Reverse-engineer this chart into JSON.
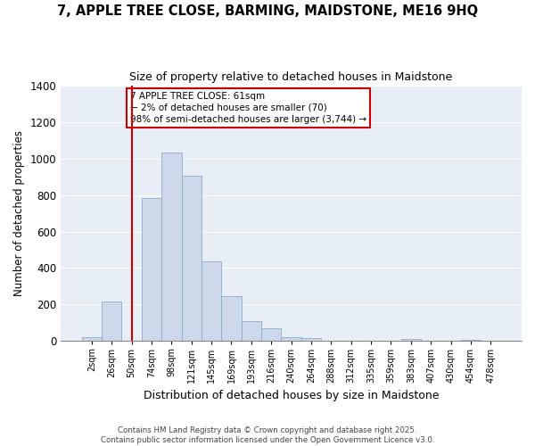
{
  "title": "7, APPLE TREE CLOSE, BARMING, MAIDSTONE, ME16 9HQ",
  "subtitle": "Size of property relative to detached houses in Maidstone",
  "xlabel": "Distribution of detached houses by size in Maidstone",
  "ylabel": "Number of detached properties",
  "bar_color": "#cdd9ea",
  "bar_edge_color": "#8eabc9",
  "plot_bg_color": "#e8eef5",
  "background_color": "#ffffff",
  "grid_color": "#ffffff",
  "bin_labels": [
    "2sqm",
    "26sqm",
    "50sqm",
    "74sqm",
    "98sqm",
    "121sqm",
    "145sqm",
    "169sqm",
    "193sqm",
    "216sqm",
    "240sqm",
    "264sqm",
    "288sqm",
    "312sqm",
    "335sqm",
    "359sqm",
    "383sqm",
    "407sqm",
    "430sqm",
    "454sqm",
    "478sqm"
  ],
  "bar_heights": [
    20,
    215,
    0,
    785,
    1030,
    905,
    435,
    245,
    110,
    70,
    20,
    15,
    0,
    0,
    0,
    0,
    10,
    0,
    0,
    5,
    0
  ],
  "vline_x": 2.0,
  "vline_color": "#cc0000",
  "ylim": [
    0,
    1400
  ],
  "yticks": [
    0,
    200,
    400,
    600,
    800,
    1000,
    1200,
    1400
  ],
  "annotation_title": "7 APPLE TREE CLOSE: 61sqm",
  "annotation_line1": "← 2% of detached houses are smaller (70)",
  "annotation_line2": "98% of semi-detached houses are larger (3,744) →",
  "footer_line1": "Contains HM Land Registry data © Crown copyright and database right 2025.",
  "footer_line2": "Contains public sector information licensed under the Open Government Licence v3.0."
}
